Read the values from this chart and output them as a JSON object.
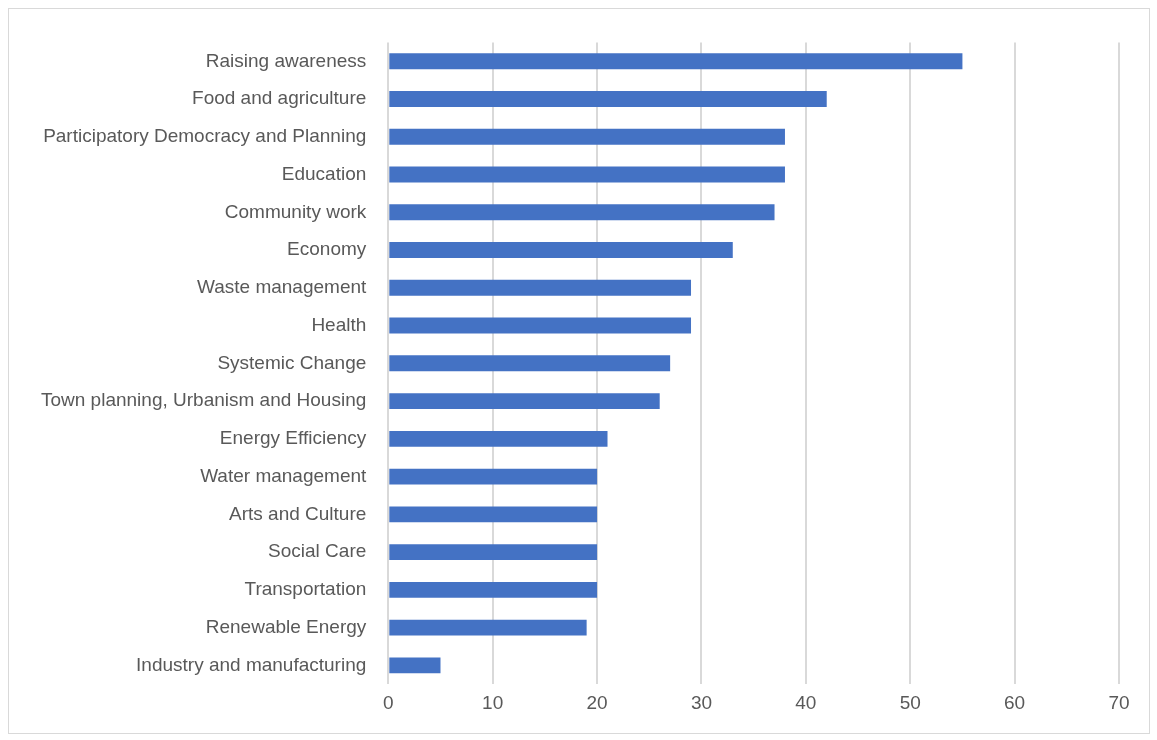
{
  "chart_data": {
    "type": "bar",
    "orientation": "horizontal",
    "categories": [
      "Raising awareness",
      "Food and agriculture",
      "Participatory Democracy and Planning",
      "Education",
      "Community work",
      "Economy",
      "Waste management",
      "Health",
      "Systemic Change",
      "Town planning, Urbanism and Housing",
      "Energy Efficiency",
      "Water management",
      "Arts and Culture",
      "Social Care",
      "Transportation",
      "Renewable Energy",
      "Industry and manufacturing"
    ],
    "values": [
      55,
      42,
      38,
      38,
      37,
      33,
      29,
      29,
      27,
      26,
      21,
      20,
      20,
      20,
      20,
      19,
      5
    ],
    "color": "#4472c4",
    "xlim": [
      0,
      70
    ],
    "xticks": [
      0,
      10,
      20,
      30,
      40,
      50,
      60,
      70
    ],
    "grid": "x"
  }
}
